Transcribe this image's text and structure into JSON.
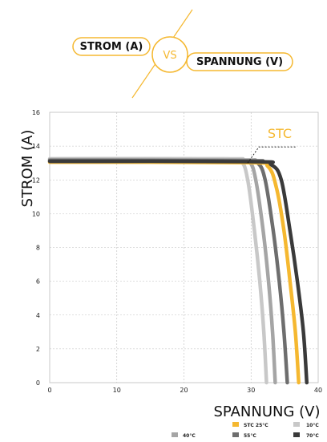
{
  "header": {
    "left_label": "STROM (A)",
    "vs_label": "VS",
    "right_label": "SPANNUNG (V)"
  },
  "colors": {
    "accent": "#f5b830",
    "grid": "#bdbdbd",
    "axis": "#555555"
  },
  "chart_data": {
    "type": "line",
    "title": "",
    "xlabel": "SPANNUNG (V)",
    "ylabel": "STROM (A)",
    "xlim": [
      0,
      40
    ],
    "ylim": [
      0,
      16
    ],
    "xticks": [
      0,
      10,
      20,
      30,
      40
    ],
    "yticks": [
      0,
      2,
      4,
      6,
      8,
      10,
      12,
      14,
      16
    ],
    "grid": true,
    "annotation": {
      "text": "STC",
      "x": 29.5,
      "y": 13.0
    },
    "series": [
      {
        "name": "10°C",
        "color": "#c8c8c8",
        "points": [
          [
            0,
            13.25
          ],
          [
            26,
            13.25
          ],
          [
            28.5,
            13.1
          ],
          [
            29.5,
            12.0
          ],
          [
            30.5,
            9.0
          ],
          [
            31.3,
            6.0
          ],
          [
            31.9,
            3.0
          ],
          [
            32.3,
            0
          ]
        ]
      },
      {
        "name": "40°C",
        "color": "#a5a5a5",
        "points": [
          [
            0,
            13.2
          ],
          [
            28,
            13.18
          ],
          [
            29.8,
            13.05
          ],
          [
            30.7,
            12.0
          ],
          [
            31.8,
            9.0
          ],
          [
            32.6,
            6.0
          ],
          [
            33.2,
            3.0
          ],
          [
            33.6,
            0
          ]
        ]
      },
      {
        "name": "55°C",
        "color": "#6e6e6e",
        "points": [
          [
            0,
            13.15
          ],
          [
            29,
            13.13
          ],
          [
            31,
            13.0
          ],
          [
            32.1,
            12.0
          ],
          [
            33.3,
            9.0
          ],
          [
            34.2,
            6.0
          ],
          [
            34.9,
            3.0
          ],
          [
            35.4,
            0
          ]
        ]
      },
      {
        "name": "STC 25°C",
        "color": "#f5b830",
        "points": [
          [
            0,
            13.05
          ],
          [
            29.5,
            13.02
          ],
          [
            32.5,
            12.8
          ],
          [
            33.8,
            11.5
          ],
          [
            34.9,
            9.0
          ],
          [
            35.8,
            6.0
          ],
          [
            36.6,
            3.0
          ],
          [
            37.1,
            0
          ]
        ]
      },
      {
        "name": "70°C",
        "color": "#3a3a3a",
        "points": [
          [
            0,
            13.1
          ],
          [
            30,
            13.08
          ],
          [
            33,
            12.9
          ],
          [
            34.5,
            12.0
          ],
          [
            35.8,
            9.0
          ],
          [
            36.9,
            6.0
          ],
          [
            37.8,
            3.0
          ],
          [
            38.3,
            0
          ]
        ]
      }
    ]
  },
  "legend": [
    {
      "label": "STC 25°C",
      "color": "#f5b830"
    },
    {
      "label": "10°C",
      "color": "#c8c8c8"
    },
    {
      "label": "40°C",
      "color": "#a5a5a5"
    },
    {
      "label": "55°C",
      "color": "#6e6e6e"
    },
    {
      "label": "70°C",
      "color": "#3a3a3a"
    }
  ]
}
